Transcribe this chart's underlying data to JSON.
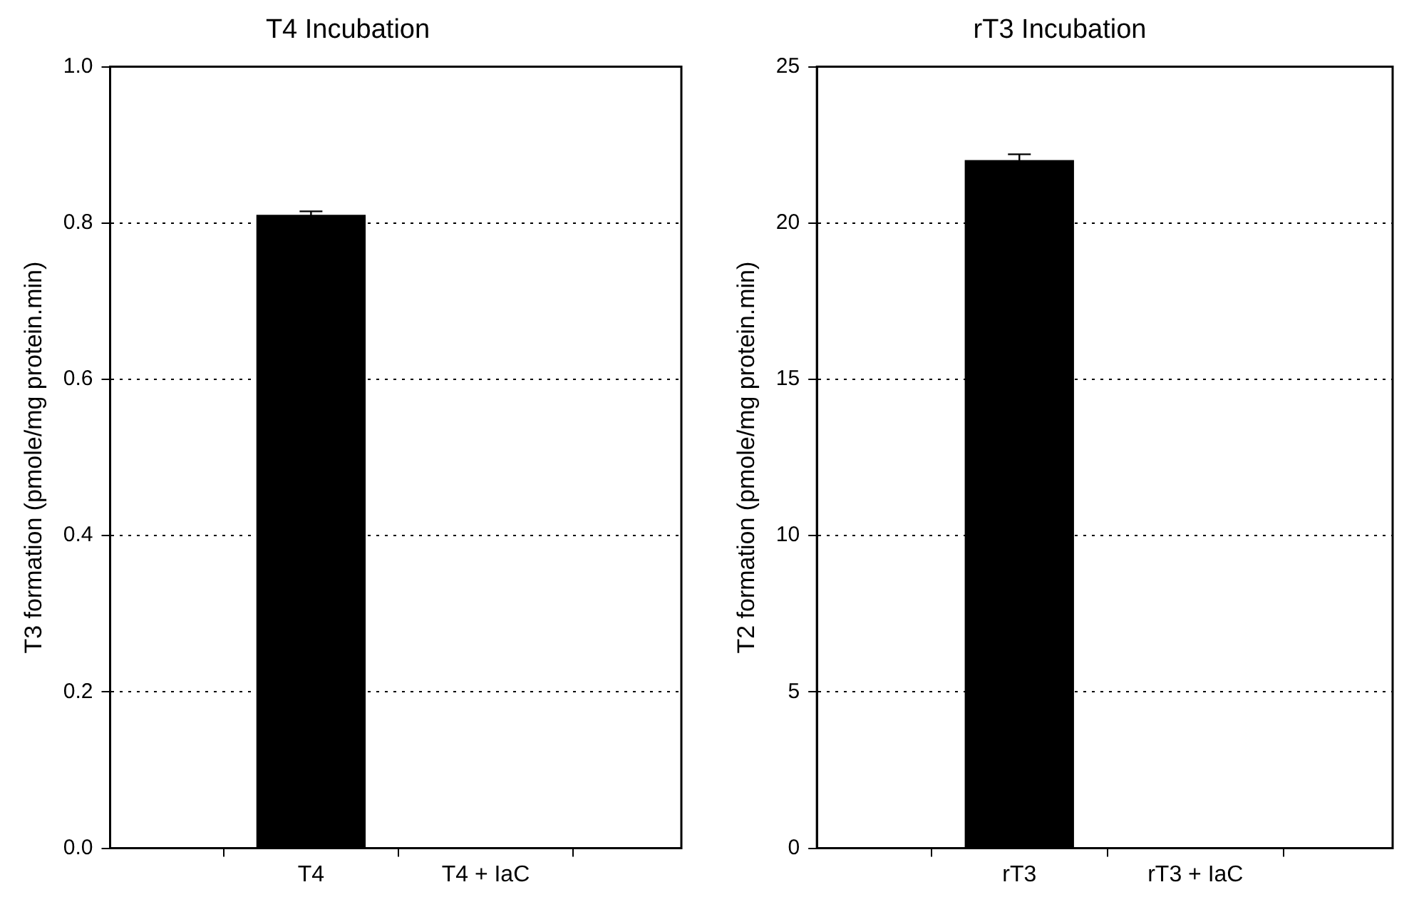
{
  "chart_data": [
    {
      "type": "bar",
      "title": "T4 Incubation",
      "ylabel": "T3 formation (pmole/mg protein.min)",
      "categories": [
        "T4",
        "T4 + IaC"
      ],
      "values": [
        0.81,
        0
      ],
      "errors": [
        0.005,
        null
      ],
      "color": "#000000",
      "ylim": [
        0,
        1.0
      ],
      "yticks": [
        {
          "value": 0,
          "label": "0.0"
        },
        {
          "value": 0.2,
          "label": "0.2"
        },
        {
          "value": 0.4,
          "label": "0.4"
        },
        {
          "value": 0.6,
          "label": "0.6"
        },
        {
          "value": 0.8,
          "label": "0.8"
        },
        {
          "value": 1.0,
          "label": "1.0"
        }
      ],
      "grid": "y",
      "legend": false
    },
    {
      "type": "bar",
      "title": "rT3 Incubation",
      "ylabel": "T2 formation (pmole/mg protein.min)",
      "categories": [
        "rT3",
        "rT3 + IaC"
      ],
      "values": [
        22.0,
        0
      ],
      "errors": [
        0.2,
        null
      ],
      "color": "#000000",
      "ylim": [
        0,
        25
      ],
      "yticks": [
        0,
        5,
        10,
        15,
        20,
        25
      ],
      "grid": "y",
      "legend": false
    }
  ]
}
